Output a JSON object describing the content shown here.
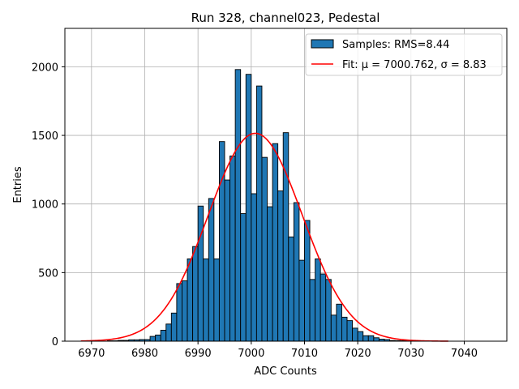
{
  "chart_data": {
    "type": "bar",
    "title": "Run 328, channel023, Pedestal",
    "xlabel": "ADC Counts",
    "ylabel": "Entries",
    "xlim": [
      6965,
      7048
    ],
    "ylim": [
      0,
      2280
    ],
    "xticks": [
      6970,
      6980,
      6990,
      7000,
      7010,
      7020,
      7030,
      7040
    ],
    "yticks": [
      0,
      500,
      1000,
      1500,
      2000
    ],
    "grid": true,
    "legend_position": "top-right",
    "histogram": {
      "name": "Samples: RMS=8.44",
      "color": "#1f77b4",
      "edgecolor": "#000000",
      "bin_start": 6973,
      "bin_width": 1,
      "counts": [
        3,
        3,
        6,
        6,
        10,
        10,
        12,
        12,
        35,
        45,
        80,
        125,
        205,
        420,
        440,
        600,
        690,
        985,
        600,
        1040,
        600,
        1455,
        1175,
        1350,
        1980,
        930,
        1945,
        1075,
        1860,
        1340,
        980,
        1440,
        1095,
        1520,
        760,
        1010,
        590,
        880,
        450,
        600,
        490,
        450,
        190,
        270,
        175,
        150,
        95,
        70,
        40,
        40,
        25,
        15,
        12,
        5,
        4,
        3,
        3,
        2,
        1,
        1,
        1,
        1
      ]
    },
    "fit": {
      "name": "Fit: μ = 7000.762, σ = 8.83",
      "color": "#ff0000",
      "mu": 7000.762,
      "sigma": 8.83,
      "amplitude": 1515,
      "x_range": [
        6968,
        7037
      ]
    }
  }
}
